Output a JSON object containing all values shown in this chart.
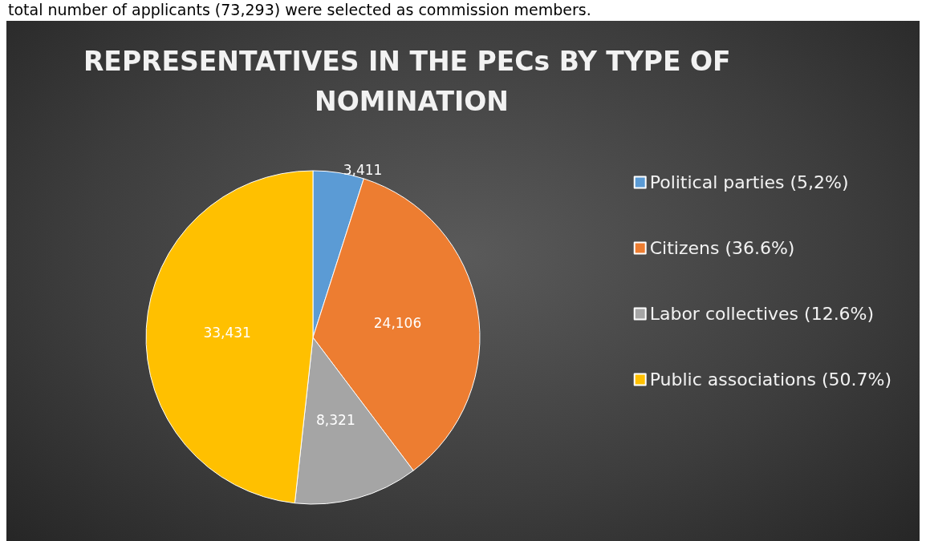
{
  "chart_data": {
    "type": "pie",
    "title": "REPRESENTATIVES IN THE PECs BY TYPE OF NOMINATION",
    "categories": [
      "Political parties (5,2%)",
      "Citizens (36.6%)",
      "Labor collectives (12.6%)",
      "Public associations (50.7%)"
    ],
    "values": [
      3411,
      24106,
      8321,
      33431
    ],
    "colors": [
      "#5b9bd5",
      "#ed7d31",
      "#a5a5a5",
      "#ffc000"
    ],
    "value_labels": [
      "3,411",
      "24,106",
      "8,321",
      "33,431"
    ],
    "legend": "right",
    "annotations": [
      "total number of applicants (73,293) were selected as commission members."
    ]
  }
}
